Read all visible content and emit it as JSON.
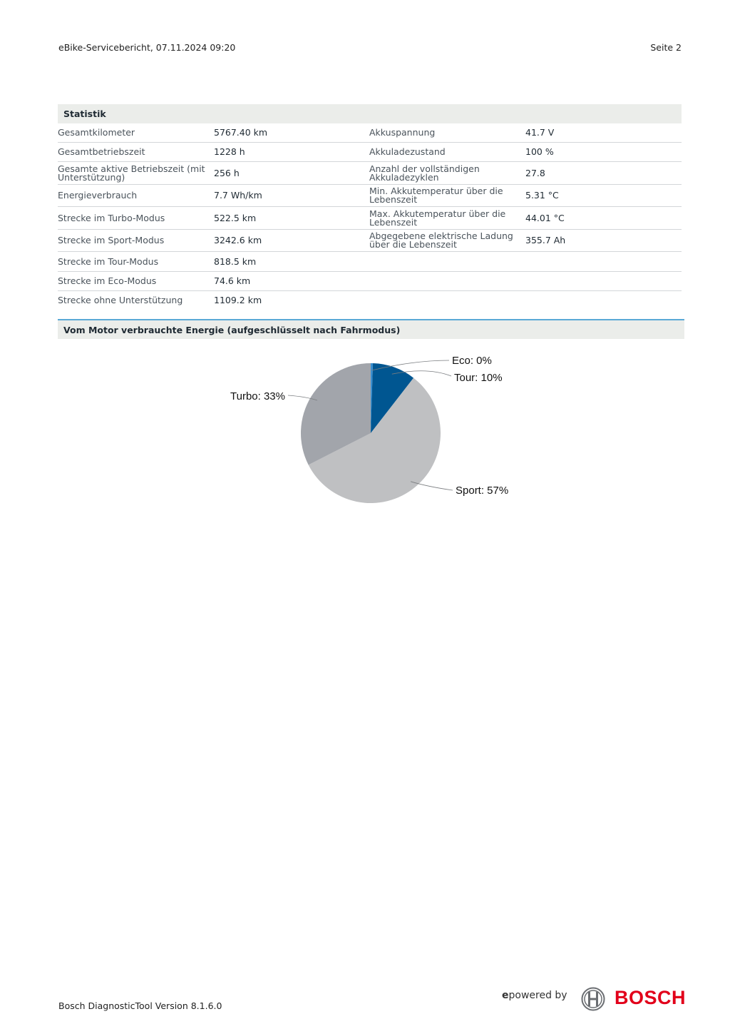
{
  "header": {
    "report_title": "eBike-Servicebericht, 07.11.2024 09:20",
    "page": "Seite 2"
  },
  "statistik": {
    "title": "Statistik",
    "rows": [
      {
        "l1": "Gesamtkilometer",
        "v1": "5767.40 km",
        "l2": "Akkuspannung",
        "v2": "41.7 V"
      },
      {
        "l1": "Gesamtbetriebszeit",
        "v1": "1228 h",
        "l2": "Akkuladezustand",
        "v2": "100 %"
      },
      {
        "l1": "Gesamte aktive Betriebszeit (mit Unterstützung)",
        "v1": "256 h",
        "l2": "Anzahl der vollständigen Akkuladezyklen",
        "v2": "27.8"
      },
      {
        "l1": "Energieverbrauch",
        "v1": "7.7 Wh/km",
        "l2": "Min. Akkutemperatur über die Lebenszeit",
        "v2": "5.31 °C"
      },
      {
        "l1": "Strecke im Turbo-Modus",
        "v1": "522.5 km",
        "l2": "Max. Akkutemperatur über die Lebenszeit",
        "v2": "44.01 °C"
      },
      {
        "l1": "Strecke im Sport-Modus",
        "v1": "3242.6 km",
        "l2": "Abgegebene elektrische Ladung über die Lebenszeit",
        "v2": "355.7 Ah"
      },
      {
        "l1": "Strecke im Tour-Modus",
        "v1": "818.5 km",
        "l2": "",
        "v2": ""
      },
      {
        "l1": "Strecke im Eco-Modus",
        "v1": "74.6 km",
        "l2": "",
        "v2": ""
      },
      {
        "l1": "Strecke ohne Unterstützung",
        "v1": "1109.2 km",
        "l2": "",
        "v2": ""
      }
    ]
  },
  "energy": {
    "title": "Vom Motor verbrauchte Energie (aufgeschlüsselt nach Fahrmodus)"
  },
  "chart_data": {
    "type": "pie",
    "title": "",
    "categories": [
      "Eco",
      "Tour",
      "Sport",
      "Turbo"
    ],
    "values": [
      0.5,
      10,
      57,
      32.5
    ],
    "labels": [
      "Eco: 0%",
      "Tour: 10%",
      "Sport: 57%",
      "Turbo: 33%"
    ],
    "colors": [
      "#3a8fd0",
      "#005691",
      "#bfc0c2",
      "#a2a5ab"
    ],
    "start_angle": "12 o'clock, clockwise"
  },
  "footer": {
    "version": "Bosch DiagnosticTool Version 8.1.6.0",
    "powered_e": "e",
    "powered_rest": "powered by",
    "brand": "BOSCH"
  }
}
